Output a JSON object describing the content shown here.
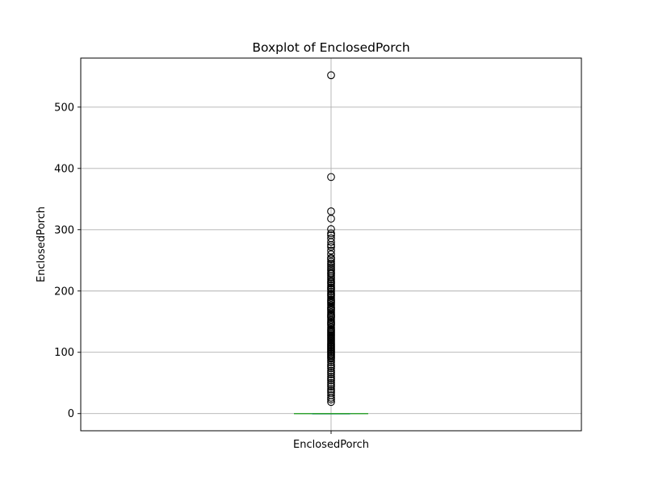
{
  "chart_data": {
    "type": "boxplot",
    "title": "Boxplot of EnclosedPorch",
    "xlabel": "",
    "ylabel": "EnclosedPorch",
    "categories": [
      "EnclosedPorch"
    ],
    "ylim": [
      -28,
      580
    ],
    "yticks": [
      0,
      100,
      200,
      300,
      400,
      500
    ],
    "grid": true,
    "box": {
      "min": 0,
      "q1": 0,
      "median": 0,
      "q3": 0,
      "max": 0
    },
    "fliers": [
      552,
      386,
      330,
      318,
      301,
      294,
      291,
      286,
      280,
      275,
      272,
      266,
      260,
      254,
      252,
      248,
      245,
      242,
      239,
      236,
      233,
      230,
      228,
      225,
      222,
      219,
      216,
      214,
      212,
      209,
      206,
      204,
      202,
      199,
      196,
      194,
      192,
      189,
      186,
      184,
      182,
      180,
      177,
      174,
      172,
      170,
      168,
      165,
      162,
      160,
      158,
      156,
      153,
      150,
      148,
      146,
      144,
      141,
      138,
      136,
      134,
      132,
      130,
      128,
      126,
      124,
      122,
      120,
      118,
      116,
      114,
      112,
      110,
      108,
      106,
      104,
      102,
      100,
      98,
      96,
      94,
      92,
      90,
      87,
      84,
      80,
      77,
      74,
      70,
      67,
      64,
      60,
      57,
      54,
      50,
      47,
      44,
      40,
      37,
      34,
      30,
      26,
      23,
      19
    ],
    "colors": {
      "median": "#2ca02c",
      "flier": "#000000",
      "grid": "#b0b0b0"
    }
  }
}
